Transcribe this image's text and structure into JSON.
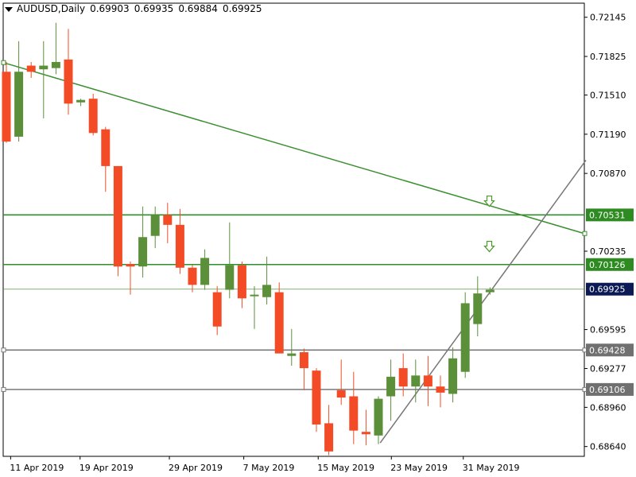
{
  "header": {
    "symbol": "AUDUSD,Daily",
    "open": "0.69903",
    "high": "0.69935",
    "low": "0.69884",
    "close": "0.69925"
  },
  "colors": {
    "bull": "#5b8f3a",
    "bear": "#f24b26",
    "trendline_green": "#3a8f2e",
    "level_green": "#2f8f2a",
    "level_gray": "#7a7a7a",
    "support_line": "#777777",
    "label_green_bg": "#2e8b22",
    "label_gray_bg": "#707070",
    "current_bg": "#0b1a55"
  },
  "chart_data": {
    "type": "candlestick",
    "title": "AUDUSD,Daily",
    "ylim": [
      0.6856,
      0.7226
    ],
    "y_ticks": [
      "0.72145",
      "0.71825",
      "0.71510",
      "0.71190",
      "0.70870",
      "0.70235",
      "0.69595",
      "0.69277",
      "0.68960",
      "0.68640"
    ],
    "x_ticks": [
      "11 Apr 2019",
      "19 Apr 2019",
      "29 Apr 2019",
      "7 May 2019",
      "15 May 2019",
      "23 May 2019",
      "31 May 2019"
    ],
    "candles": [
      {
        "o": 0.717,
        "h": 0.7178,
        "l": 0.7112,
        "c": 0.7113
      },
      {
        "o": 0.7117,
        "h": 0.7195,
        "l": 0.7113,
        "c": 0.717
      },
      {
        "o": 0.7175,
        "h": 0.7178,
        "l": 0.7165,
        "c": 0.717
      },
      {
        "o": 0.7172,
        "h": 0.7195,
        "l": 0.7132,
        "c": 0.7175
      },
      {
        "o": 0.7173,
        "h": 0.721,
        "l": 0.7168,
        "c": 0.7178
      },
      {
        "o": 0.718,
        "h": 0.7205,
        "l": 0.7135,
        "c": 0.7144
      },
      {
        "o": 0.7145,
        "h": 0.7148,
        "l": 0.7142,
        "c": 0.7147
      },
      {
        "o": 0.7148,
        "h": 0.7152,
        "l": 0.7118,
        "c": 0.712
      },
      {
        "o": 0.7123,
        "h": 0.7125,
        "l": 0.7072,
        "c": 0.7093
      },
      {
        "o": 0.7093,
        "h": 0.7093,
        "l": 0.7003,
        "c": 0.7011
      },
      {
        "o": 0.7013,
        "h": 0.7015,
        "l": 0.6988,
        "c": 0.7011
      },
      {
        "o": 0.7011,
        "h": 0.706,
        "l": 0.7002,
        "c": 0.7035
      },
      {
        "o": 0.7036,
        "h": 0.706,
        "l": 0.7026,
        "c": 0.7053
      },
      {
        "o": 0.7053,
        "h": 0.7063,
        "l": 0.703,
        "c": 0.7045
      },
      {
        "o": 0.7045,
        "h": 0.7058,
        "l": 0.7005,
        "c": 0.701
      },
      {
        "o": 0.701,
        "h": 0.7012,
        "l": 0.699,
        "c": 0.6996
      },
      {
        "o": 0.6996,
        "h": 0.7025,
        "l": 0.6992,
        "c": 0.7018
      },
      {
        "o": 0.699,
        "h": 0.6995,
        "l": 0.6955,
        "c": 0.6962
      },
      {
        "o": 0.6992,
        "h": 0.7047,
        "l": 0.6985,
        "c": 0.7012
      },
      {
        "o": 0.7012,
        "h": 0.7015,
        "l": 0.6977,
        "c": 0.6985
      },
      {
        "o": 0.6987,
        "h": 0.6995,
        "l": 0.696,
        "c": 0.6988
      },
      {
        "o": 0.6986,
        "h": 0.7019,
        "l": 0.698,
        "c": 0.6996
      },
      {
        "o": 0.699,
        "h": 0.6998,
        "l": 0.694,
        "c": 0.694
      },
      {
        "o": 0.6938,
        "h": 0.696,
        "l": 0.693,
        "c": 0.694
      },
      {
        "o": 0.6941,
        "h": 0.6944,
        "l": 0.691,
        "c": 0.6928
      },
      {
        "o": 0.6926,
        "h": 0.6928,
        "l": 0.6876,
        "c": 0.6882
      },
      {
        "o": 0.6883,
        "h": 0.6898,
        "l": 0.6857,
        "c": 0.686
      },
      {
        "o": 0.691,
        "h": 0.6935,
        "l": 0.6898,
        "c": 0.6904
      },
      {
        "o": 0.6905,
        "h": 0.6925,
        "l": 0.6866,
        "c": 0.6877
      },
      {
        "o": 0.6876,
        "h": 0.6894,
        "l": 0.6865,
        "c": 0.6874
      },
      {
        "o": 0.6873,
        "h": 0.6905,
        "l": 0.6866,
        "c": 0.6903
      },
      {
        "o": 0.6905,
        "h": 0.6935,
        "l": 0.6885,
        "c": 0.6921
      },
      {
        "o": 0.6928,
        "h": 0.694,
        "l": 0.6905,
        "c": 0.6913
      },
      {
        "o": 0.6913,
        "h": 0.6935,
        "l": 0.69,
        "c": 0.6922
      },
      {
        "o": 0.6922,
        "h": 0.6938,
        "l": 0.6897,
        "c": 0.6913
      },
      {
        "o": 0.6913,
        "h": 0.6922,
        "l": 0.6896,
        "c": 0.6908
      },
      {
        "o": 0.6907,
        "h": 0.6945,
        "l": 0.69,
        "c": 0.6936
      },
      {
        "o": 0.6925,
        "h": 0.699,
        "l": 0.692,
        "c": 0.6981
      },
      {
        "o": 0.6964,
        "h": 0.7003,
        "l": 0.6954,
        "c": 0.6989
      },
      {
        "o": 0.699,
        "h": 0.6994,
        "l": 0.6988,
        "c": 0.6992
      }
    ],
    "horizontal_levels": [
      {
        "value": 0.70531,
        "label": "0.70531",
        "kind": "green"
      },
      {
        "value": 0.70126,
        "label": "0.70126",
        "kind": "green"
      },
      {
        "value": 0.69428,
        "label": "0.69428",
        "kind": "gray"
      },
      {
        "value": 0.69106,
        "label": "0.69106",
        "kind": "gray"
      }
    ],
    "current_price": {
      "value": 0.69925,
      "label": "0.69925"
    },
    "trendlines": [
      {
        "from": {
          "date": "11 Apr 2019",
          "y": 0.71775
        },
        "to": {
          "date": "31 May 2019",
          "y": 0.7067
        },
        "kind": "resistance"
      },
      {
        "from": {
          "date": "23 May 2019",
          "y": 0.6867
        },
        "to": {
          "date": "31 May 2019",
          "y": 0.6963
        },
        "kind": "support"
      }
    ],
    "arrows": [
      {
        "direction": "down",
        "y": 0.7064
      },
      {
        "direction": "down",
        "y": 0.7027
      }
    ]
  }
}
